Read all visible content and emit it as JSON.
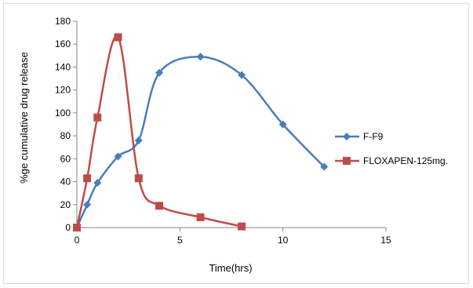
{
  "chart_data": {
    "type": "line",
    "title": "",
    "xlabel": "Time(hrs)",
    "ylabel": "%ge cumulative drug release",
    "xlim": [
      0,
      15
    ],
    "ylim": [
      0,
      180
    ],
    "x_ticks": [
      0,
      5,
      10,
      15
    ],
    "y_ticks": [
      0,
      20,
      40,
      60,
      80,
      100,
      120,
      140,
      160,
      180
    ],
    "grid": false,
    "legend_position": "right",
    "smooth": true,
    "series": [
      {
        "name": "F-F9",
        "color": "#4a7ebb",
        "marker": "diamond",
        "x": [
          0,
          0.5,
          1,
          2,
          3,
          4,
          6,
          8,
          10,
          12
        ],
        "y": [
          0,
          20,
          39,
          62,
          76,
          135,
          149,
          133,
          90,
          53
        ]
      },
      {
        "name": "FLOXAPEN-125mg.",
        "color": "#be4b48",
        "marker": "square",
        "x": [
          0,
          0.5,
          1,
          2,
          3,
          4,
          6,
          8
        ],
        "y": [
          0,
          43,
          96,
          166,
          43,
          19,
          9,
          1
        ]
      }
    ]
  }
}
